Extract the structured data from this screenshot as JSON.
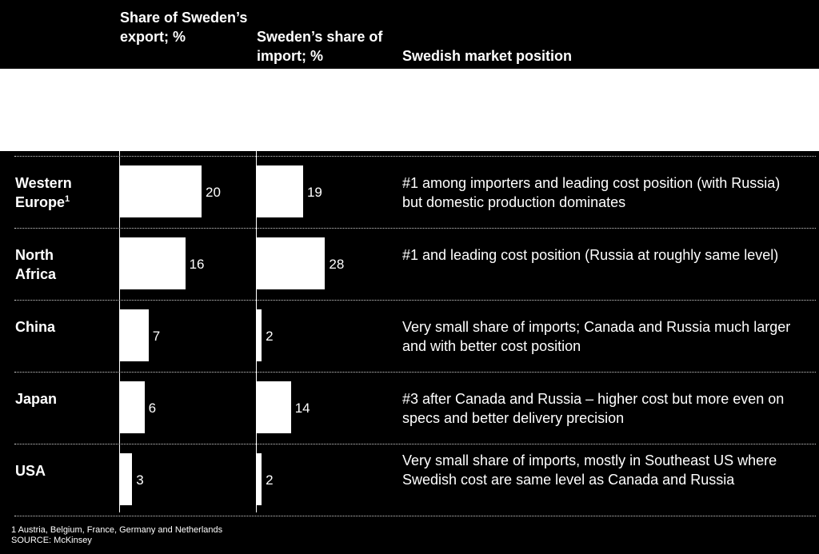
{
  "headers": {
    "export": "Share of Sweden’s export; %",
    "import": "Sweden’s share of  import; %",
    "position": "Swedish market position"
  },
  "chart_data": {
    "type": "bar",
    "categories": [
      "Western Europe",
      "North Africa",
      "China",
      "Japan",
      "USA"
    ],
    "category_footnotes": [
      "1",
      "",
      "",
      "",
      ""
    ],
    "series": [
      {
        "name": "Share of Sweden’s export; %",
        "values": [
          20,
          16,
          7,
          6,
          3
        ]
      },
      {
        "name": "Sweden’s share of  import; %",
        "values": [
          19,
          28,
          2,
          14,
          2
        ]
      }
    ],
    "descriptions": [
      "#1 among importers and leading cost position (with Russia) but domestic production dominates",
      "#1 and leading cost position (Russia at roughly same level)",
      "Very small share of imports; Canada and Russia much larger and with better cost position",
      "#3 after Canada and Russia – higher cost but more even on specs and better delivery precision",
      "Very small share of imports, mostly in Southeast US where Swedish cost are same level as Canada and Russia"
    ]
  },
  "footnote": "1 Austria, Belgium, France, Germany and Netherlands",
  "source": "SOURCE:  McKinsey"
}
